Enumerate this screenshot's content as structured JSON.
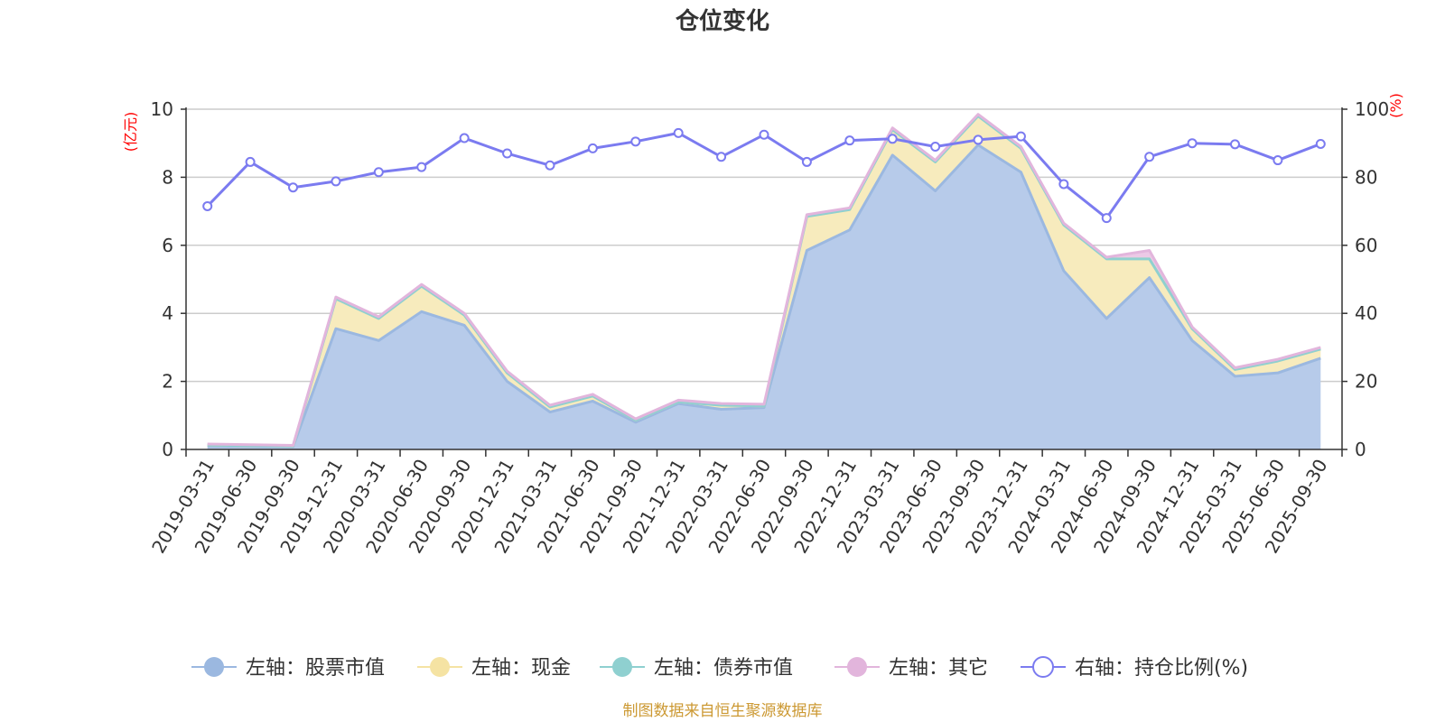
{
  "chart_data": {
    "type": "area",
    "title": "仓位变化",
    "left_axis": {
      "unit": "(亿元)",
      "min": 0,
      "max": 10,
      "ticks": [
        "0",
        "2",
        "4",
        "6",
        "8",
        "10"
      ]
    },
    "right_axis": {
      "unit": "(%)",
      "min": 0,
      "max": 100,
      "ticks": [
        "0",
        "20",
        "40",
        "60",
        "80",
        "100"
      ]
    },
    "x": [
      "2019-03-31",
      "2019-06-30",
      "2019-09-30",
      "2019-12-31",
      "2020-03-31",
      "2020-06-30",
      "2020-09-30",
      "2020-12-31",
      "2021-03-31",
      "2021-06-30",
      "2021-09-30",
      "2021-12-31",
      "2022-03-31",
      "2022-06-30",
      "2022-09-30",
      "2022-12-31",
      "2023-03-31",
      "2023-06-30",
      "2023-09-30",
      "2023-12-31",
      "2024-03-31",
      "2024-06-30",
      "2024-09-30",
      "2024-12-31",
      "2025-03-31",
      "2025-06-30",
      "2025-09-30"
    ],
    "series": [
      {
        "name": "左轴：股票市值",
        "axis": "left",
        "stack": true,
        "color": "#9bb8e0",
        "fill": "#b7cbea",
        "values": [
          0.1,
          0.09,
          0.08,
          3.55,
          3.2,
          4.05,
          3.65,
          2.0,
          1.1,
          1.42,
          0.8,
          1.35,
          1.18,
          1.23,
          5.85,
          6.45,
          8.65,
          7.6,
          8.95,
          8.15,
          5.25,
          3.85,
          5.05,
          3.2,
          2.15,
          2.25,
          2.68
        ]
      },
      {
        "name": "左轴：现金",
        "axis": "left",
        "stack": true,
        "color": "#f5e3a3",
        "fill": "#f7ebbd",
        "values": [
          0.03,
          0.02,
          0.02,
          0.88,
          0.65,
          0.75,
          0.3,
          0.25,
          0.15,
          0.15,
          0.06,
          0.05,
          0.12,
          0.05,
          1.0,
          0.6,
          0.75,
          0.85,
          0.85,
          0.7,
          1.35,
          1.75,
          0.55,
          0.35,
          0.2,
          0.35,
          0.27
        ]
      },
      {
        "name": "左轴：债券市值",
        "axis": "left",
        "stack": true,
        "color": "#8fd0d0",
        "fill": "#a9dcdc",
        "values": [
          0,
          0,
          0,
          0,
          0,
          0,
          0,
          0,
          0,
          0,
          0,
          0,
          0,
          0,
          0,
          0,
          0,
          0,
          0,
          0,
          0,
          0,
          0,
          0,
          0,
          0,
          0
        ]
      },
      {
        "name": "左轴：其它",
        "axis": "left",
        "stack": true,
        "color": "#e2b5dc",
        "fill": "#ecc9e6",
        "values": [
          0.03,
          0.03,
          0.02,
          0.05,
          0.05,
          0.05,
          0.05,
          0.05,
          0.05,
          0.05,
          0.04,
          0.05,
          0.05,
          0.05,
          0.05,
          0.05,
          0.05,
          0.05,
          0.05,
          0.05,
          0.05,
          0.05,
          0.25,
          0.05,
          0.05,
          0.05,
          0.05
        ]
      },
      {
        "name": "右轴：持仓比例(%)",
        "axis": "right",
        "stack": false,
        "color": "#7b7bf0",
        "fill": "#ffffff",
        "values": [
          71.5,
          84.5,
          77,
          78.8,
          81.5,
          83,
          91.5,
          87,
          83.5,
          88.5,
          90.5,
          93,
          86,
          92.5,
          84.5,
          90.8,
          91.3,
          89,
          91,
          92,
          78,
          68,
          86,
          90,
          89.7,
          85,
          89.8
        ]
      }
    ]
  },
  "source_note": "制图数据来自恒生聚源数据库"
}
